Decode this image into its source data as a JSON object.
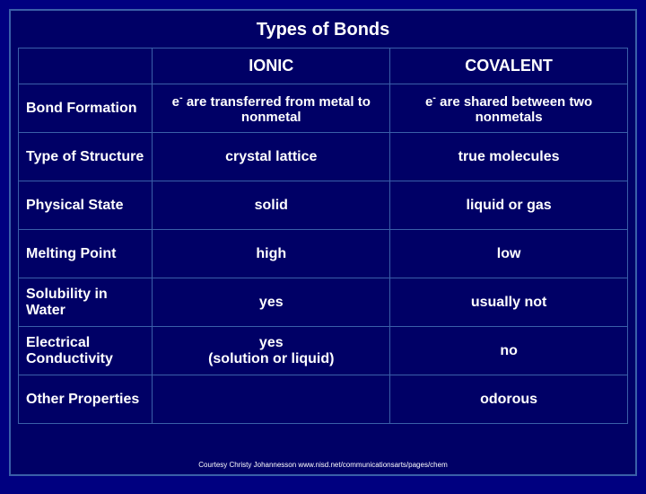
{
  "title": "Types of Bonds",
  "columns": {
    "blank": "",
    "ionic": "IONIC",
    "covalent": "COVALENT"
  },
  "rows": [
    {
      "label": "Bond Formation",
      "ionic_pre": "e",
      "ionic_sup": "-",
      "ionic_post": " are transferred from metal to nonmetal",
      "covalent_pre": "e",
      "covalent_sup": "-",
      "covalent_post": " are shared between two nonmetals"
    },
    {
      "label": "Type of Structure",
      "ionic": "crystal lattice",
      "covalent": "true molecules"
    },
    {
      "label": "Physical State",
      "ionic": "solid",
      "covalent": "liquid or gas"
    },
    {
      "label": "Melting Point",
      "ionic": "high",
      "covalent": "low"
    },
    {
      "label": "Solubility in Water",
      "ionic": "yes",
      "covalent": "usually not"
    },
    {
      "label": "Electrical Conductivity",
      "ionic": "yes\n(solution or liquid)",
      "covalent": "no"
    },
    {
      "label": "Other Properties",
      "ionic": "",
      "covalent": "odorous"
    }
  ],
  "credit": "Courtesy Christy Johannesson www.nisd.net/communicationsarts/pages/chem",
  "style": {
    "background_color": "#000066",
    "outer_background": "#000080",
    "border_color": "#3a5fa8",
    "text_color": "#ffffff",
    "title_fontsize": 20,
    "header_fontsize": 18,
    "cell_fontsize": 16,
    "credit_fontsize": 8
  }
}
